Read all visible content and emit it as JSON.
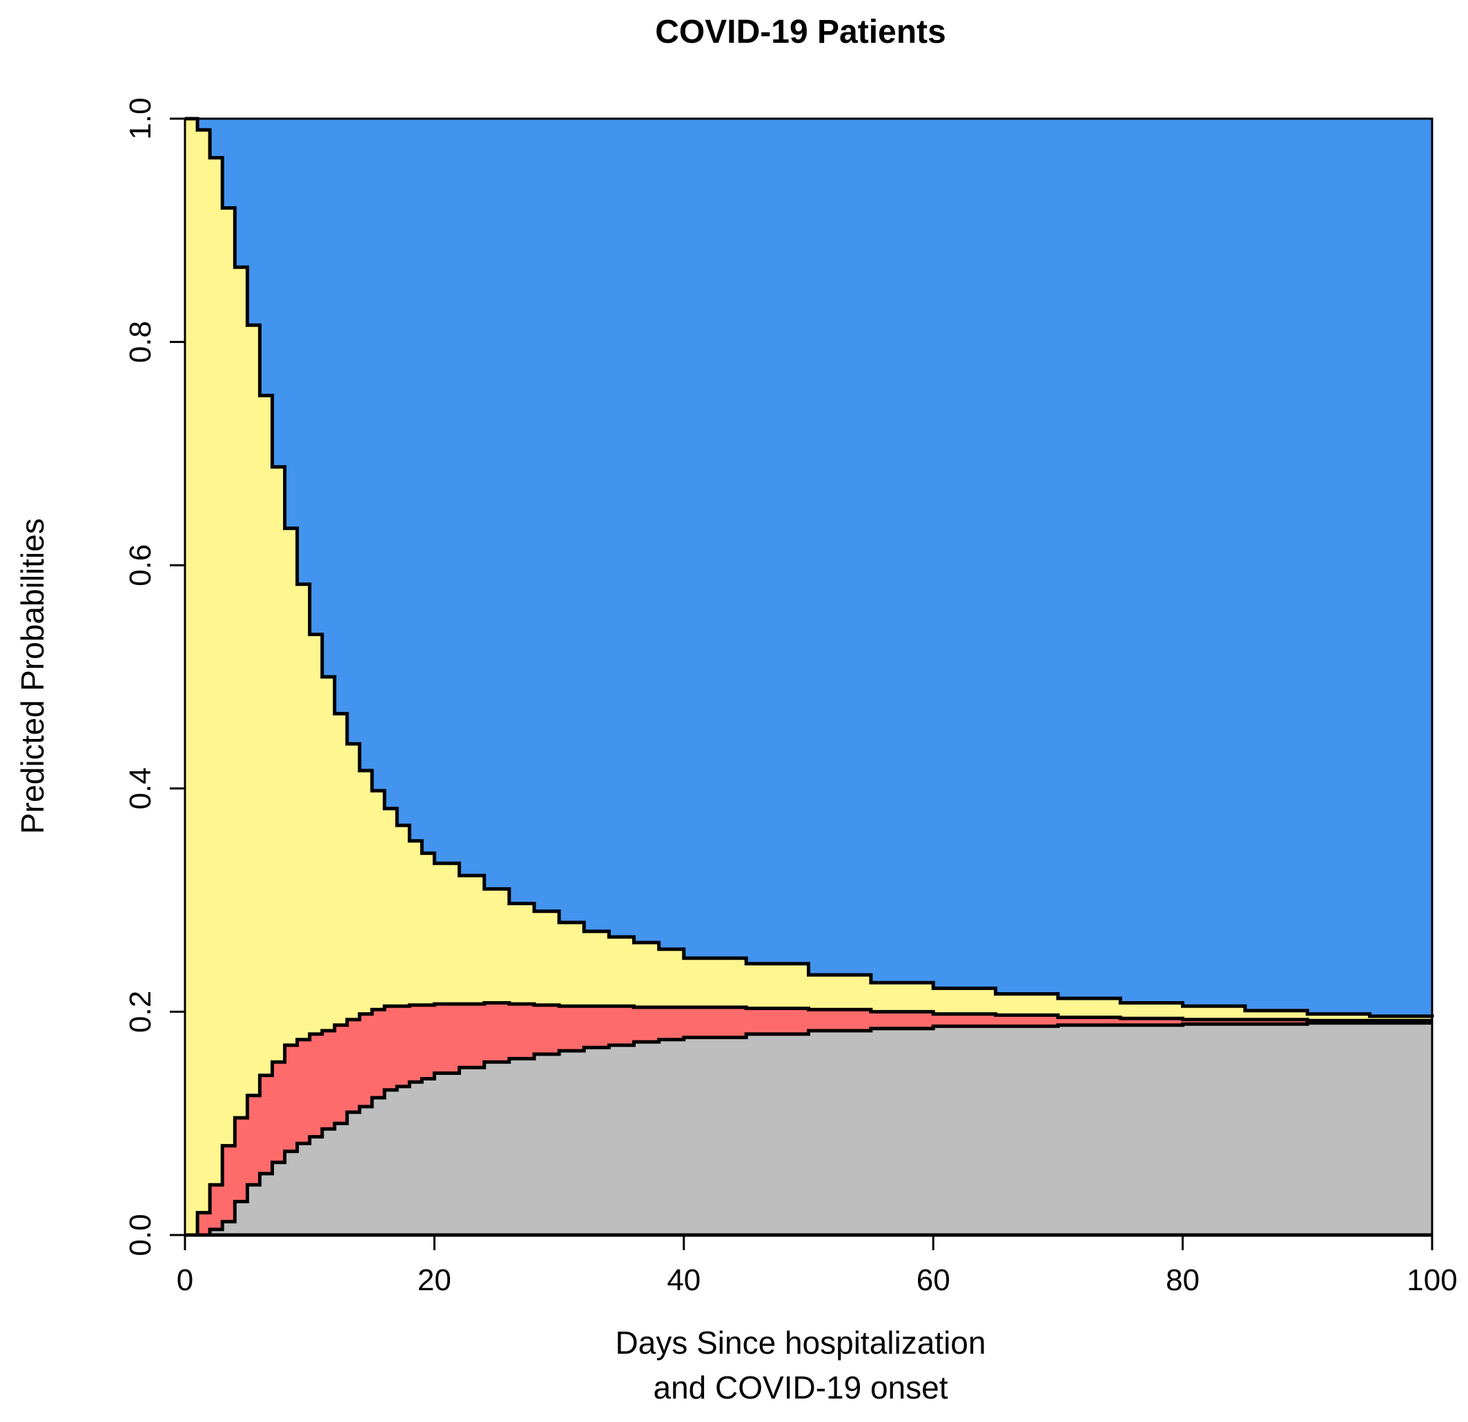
{
  "chart_data": {
    "type": "area",
    "stacked": true,
    "step": true,
    "title": "COVID-19 Patients",
    "xlabel_lines": [
      "Days Since hospitalization",
      "and COVID-19 onset"
    ],
    "ylabel": "Predicted Probabilities",
    "xlim": [
      0,
      100
    ],
    "ylim": [
      0,
      1
    ],
    "xticks": [
      0,
      20,
      40,
      60,
      80,
      100
    ],
    "xtick_labels": [
      "0",
      "20",
      "40",
      "60",
      "80",
      "100"
    ],
    "yticks": [
      0,
      0.2,
      0.4,
      0.6,
      0.8,
      1.0
    ],
    "ytick_labels": [
      "0.0",
      "0.2",
      "0.4",
      "0.6",
      "0.8",
      "1.0"
    ],
    "colors": {
      "bottom": "#bebebe",
      "lower_middle": "#ff6b6b",
      "upper_middle": "#fff68f",
      "top": "#4394ee",
      "boundary": "#000000"
    },
    "x": [
      0,
      1,
      2,
      3,
      4,
      5,
      6,
      7,
      8,
      9,
      10,
      11,
      12,
      13,
      14,
      15,
      16,
      17,
      18,
      19,
      20,
      22,
      24,
      26,
      28,
      30,
      32,
      34,
      36,
      38,
      40,
      45,
      50,
      55,
      60,
      65,
      70,
      75,
      80,
      85,
      90,
      95,
      100
    ],
    "boundaries": {
      "boundary_1": [
        0,
        0,
        0.005,
        0.012,
        0.03,
        0.045,
        0.055,
        0.065,
        0.075,
        0.082,
        0.088,
        0.095,
        0.1,
        0.11,
        0.115,
        0.123,
        0.13,
        0.133,
        0.137,
        0.14,
        0.145,
        0.15,
        0.155,
        0.158,
        0.162,
        0.165,
        0.168,
        0.17,
        0.173,
        0.175,
        0.177,
        0.18,
        0.183,
        0.185,
        0.187,
        0.187,
        0.188,
        0.188,
        0.189,
        0.189,
        0.19,
        0.19,
        0.19
      ],
      "boundary_2": [
        0,
        0.02,
        0.045,
        0.08,
        0.105,
        0.125,
        0.143,
        0.155,
        0.17,
        0.175,
        0.18,
        0.183,
        0.188,
        0.193,
        0.198,
        0.202,
        0.205,
        0.205,
        0.206,
        0.206,
        0.207,
        0.207,
        0.208,
        0.207,
        0.206,
        0.205,
        0.205,
        0.205,
        0.204,
        0.204,
        0.204,
        0.203,
        0.202,
        0.2,
        0.198,
        0.197,
        0.195,
        0.194,
        0.193,
        0.193,
        0.192,
        0.192,
        0.192
      ],
      "boundary_3": [
        1.0,
        0.99,
        0.965,
        0.92,
        0.867,
        0.815,
        0.752,
        0.688,
        0.633,
        0.583,
        0.538,
        0.5,
        0.467,
        0.44,
        0.416,
        0.398,
        0.382,
        0.367,
        0.353,
        0.342,
        0.333,
        0.322,
        0.31,
        0.297,
        0.29,
        0.28,
        0.272,
        0.267,
        0.262,
        0.256,
        0.248,
        0.243,
        0.233,
        0.226,
        0.221,
        0.216,
        0.212,
        0.208,
        0.205,
        0.201,
        0.198,
        0.196,
        0.195
      ]
    }
  }
}
